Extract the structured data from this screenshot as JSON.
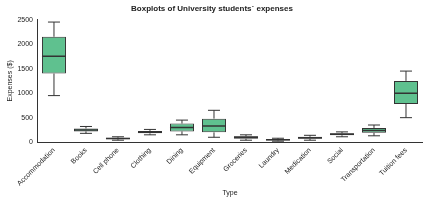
{
  "chart_data": {
    "type": "boxplot",
    "title": "Boxplots of University students´ expenses",
    "x_label": "Type",
    "y_label": "Expenses ($)",
    "categories": [
      "Accommodation",
      "Books",
      "Cell phone",
      "Clothing",
      "Dining",
      "Equipment",
      "Groceries",
      "Laundry",
      "Medication",
      "Social",
      "Transportation",
      "Tuition fees"
    ],
    "min": [
      950,
      180,
      40,
      150,
      150,
      100,
      40,
      20,
      40,
      110,
      130,
      500
    ],
    "q1": [
      1400,
      220,
      60,
      180,
      220,
      200,
      70,
      35,
      70,
      140,
      190,
      780
    ],
    "median": [
      1750,
      250,
      75,
      200,
      300,
      330,
      100,
      50,
      90,
      160,
      240,
      1000
    ],
    "q3": [
      2150,
      280,
      90,
      230,
      380,
      480,
      120,
      60,
      110,
      180,
      290,
      1250
    ],
    "max": [
      2450,
      320,
      110,
      260,
      450,
      650,
      150,
      80,
      140,
      210,
      350,
      1450
    ],
    "color": "#5fc18f",
    "ylim": [
      0,
      2500
    ],
    "yticks": [
      0,
      500,
      1000,
      1500,
      2000,
      2500
    ],
    "grid": false
  }
}
